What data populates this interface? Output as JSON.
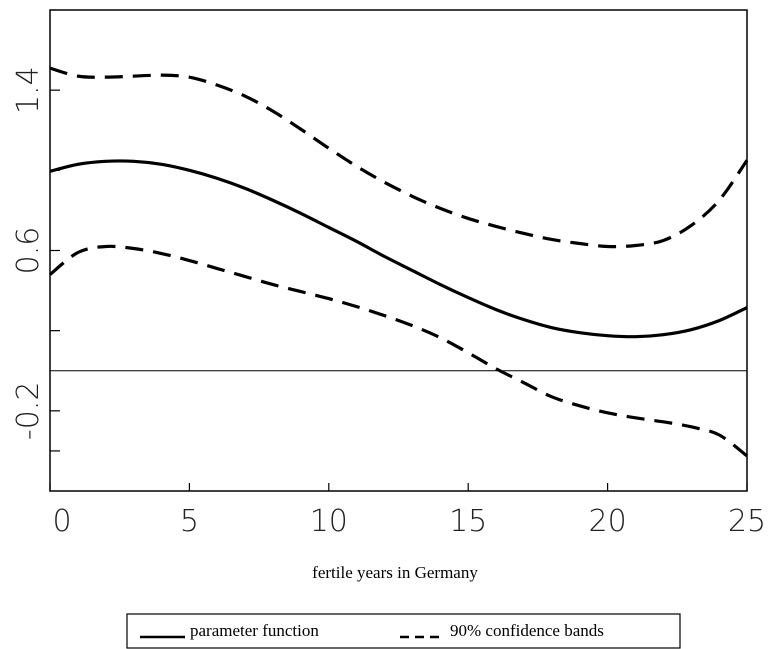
{
  "chart_data": {
    "type": "line",
    "xlabel": "fertile years in Germany",
    "x": [
      0,
      1,
      2,
      3,
      4,
      5,
      6,
      7,
      8,
      9,
      10,
      11,
      12,
      13,
      14,
      15,
      16,
      17,
      18,
      19,
      20,
      21,
      22,
      23,
      24,
      25
    ],
    "xlim": [
      0,
      25
    ],
    "xticks": [
      0,
      5,
      10,
      15,
      20,
      25
    ],
    "ylim": [
      -0.6,
      1.8
    ],
    "yticks": [
      -0.2,
      0.6,
      1.4
    ],
    "yticks_minor": [
      -0.4,
      0.2,
      1.0
    ],
    "hline": 0,
    "series": [
      {
        "name": "parameter function",
        "color": "#000000",
        "dash": "solid",
        "values": [
          0.995,
          1.03,
          1.045,
          1.045,
          1.03,
          1.0,
          0.96,
          0.91,
          0.85,
          0.785,
          0.715,
          0.645,
          0.57,
          0.5,
          0.43,
          0.365,
          0.305,
          0.255,
          0.215,
          0.19,
          0.175,
          0.17,
          0.18,
          0.205,
          0.25,
          0.315
        ]
      },
      {
        "name": "90% confidence bands",
        "color": "#000000",
        "dash": "dashed",
        "upper": [
          1.51,
          1.47,
          1.465,
          1.47,
          1.475,
          1.465,
          1.425,
          1.37,
          1.295,
          1.205,
          1.11,
          1.02,
          0.94,
          0.87,
          0.81,
          0.76,
          0.72,
          0.685,
          0.655,
          0.635,
          0.62,
          0.625,
          0.65,
          0.725,
          0.85,
          1.05
        ],
        "lower": [
          0.48,
          0.59,
          0.62,
          0.61,
          0.585,
          0.55,
          0.51,
          0.47,
          0.43,
          0.395,
          0.36,
          0.32,
          0.275,
          0.225,
          0.165,
          0.09,
          0.01,
          -0.06,
          -0.13,
          -0.175,
          -0.21,
          -0.235,
          -0.255,
          -0.28,
          -0.32,
          -0.425
        ]
      }
    ]
  }
}
